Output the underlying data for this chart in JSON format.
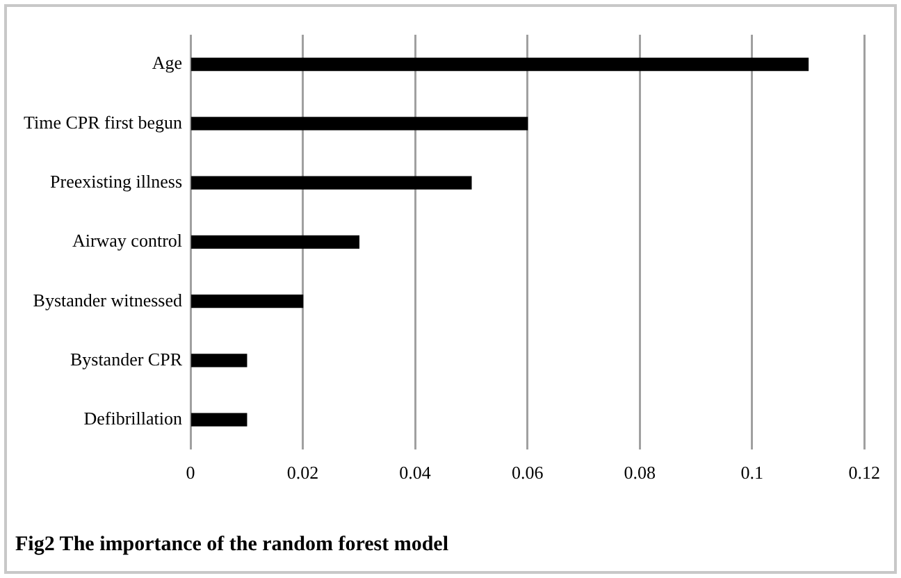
{
  "chart_data": {
    "type": "bar",
    "orientation": "horizontal",
    "title": "Fig2 The importance of the random forest model",
    "categories": [
      "Age",
      "Time CPR first begun",
      "Preexisting illness",
      "Airway control",
      "Bystander witnessed",
      "Bystander CPR",
      "Defibrillation"
    ],
    "values": [
      0.11,
      0.06,
      0.05,
      0.03,
      0.02,
      0.01,
      0.01
    ],
    "color": "#000000",
    "xlim": [
      0,
      0.12
    ],
    "xticks": [
      0,
      0.02,
      0.04,
      0.06,
      0.08,
      0.1,
      0.12
    ],
    "grid": "x",
    "legend": false
  }
}
